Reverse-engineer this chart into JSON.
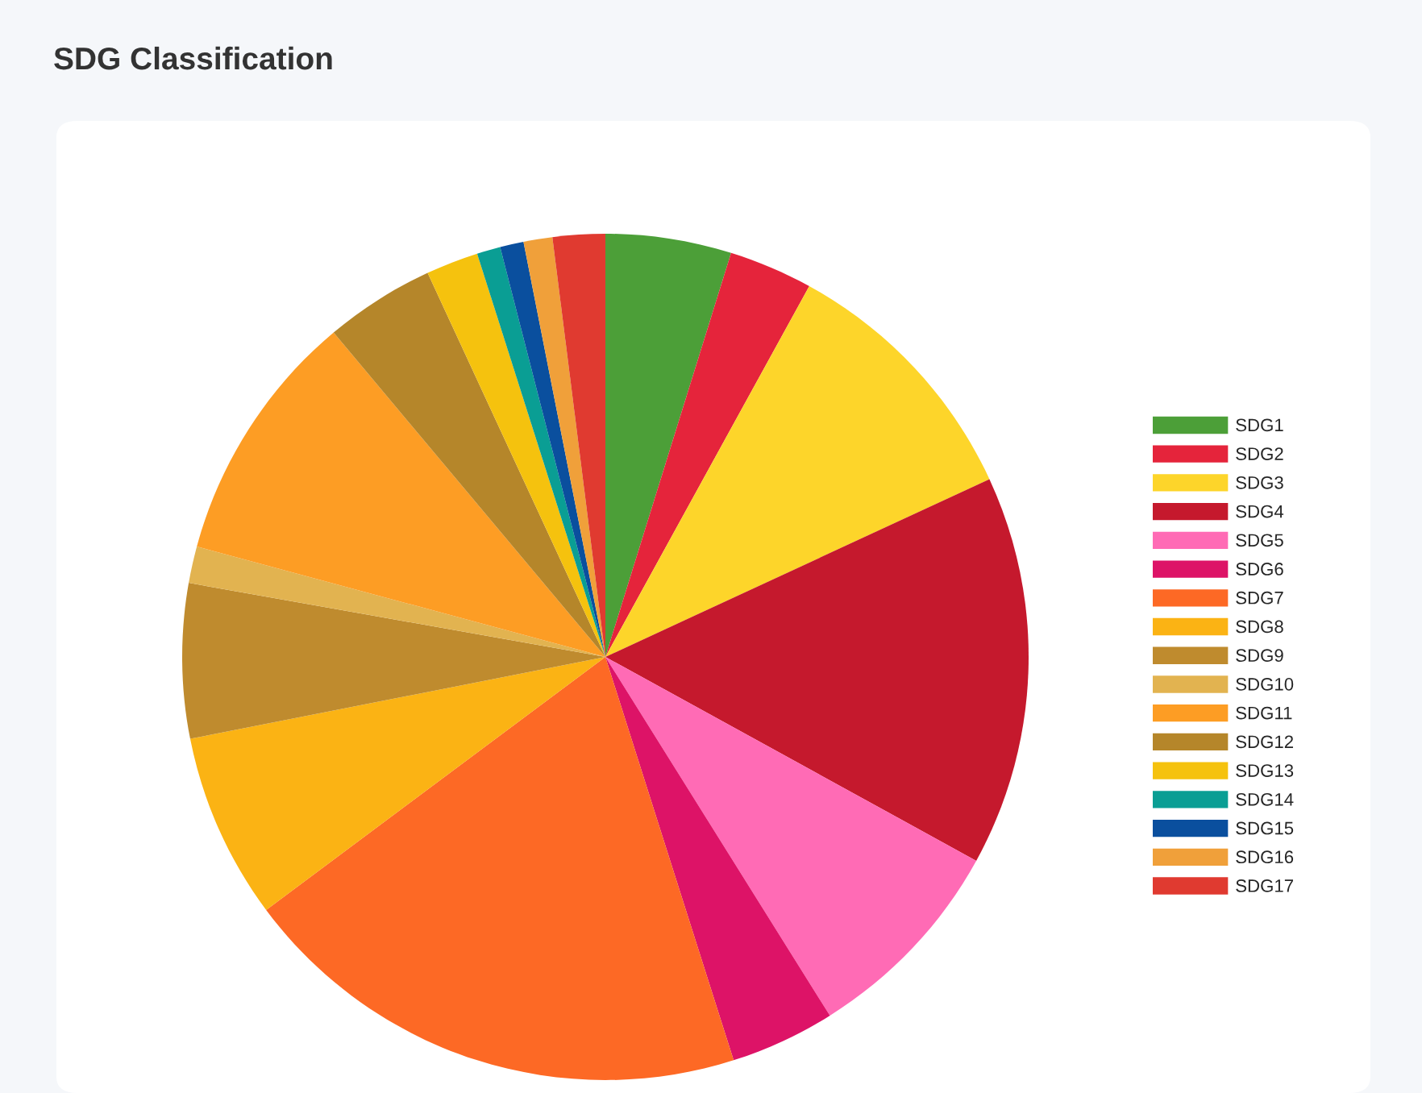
{
  "chart_data": {
    "type": "pie",
    "title": "SDG Classification",
    "categories": [
      "SDG1",
      "SDG2",
      "SDG3",
      "SDG4",
      "SDG5",
      "SDG6",
      "SDG7",
      "SDG8",
      "SDG9",
      "SDG10",
      "SDG11",
      "SDG12",
      "SDG13",
      "SDG14",
      "SDG15",
      "SDG16",
      "SDG17"
    ],
    "values": [
      4.8,
      3.2,
      10.1,
      14.9,
      8.1,
      4.0,
      19.7,
      7.1,
      5.9,
      1.4,
      9.7,
      4.2,
      2.0,
      0.9,
      0.9,
      1.1,
      2.0
    ],
    "colors": [
      "#4c9f38",
      "#e5243b",
      "#fdd52a",
      "#c5192d",
      "#ff6bb5",
      "#dd1367",
      "#fd6925",
      "#fbb314",
      "#bf8b2e",
      "#e2b350",
      "#fd9d24",
      "#b5862a",
      "#f5c20e",
      "#0a9e94",
      "#0a4f9e",
      "#f0a03a",
      "#e03a30"
    ],
    "legend": "right"
  }
}
